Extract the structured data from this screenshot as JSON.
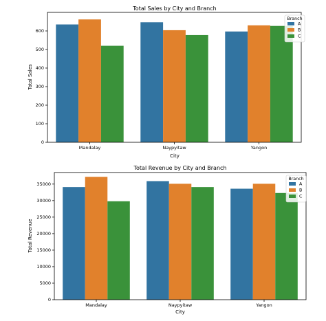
{
  "colors": {
    "A": "#3274a1",
    "B": "#e1812c",
    "C": "#3a923a"
  },
  "chart_data": [
    {
      "type": "bar",
      "title": "Total Sales by City and Branch",
      "xlabel": "City",
      "ylabel": "Total Sales",
      "categories": [
        "Mandalay",
        "Naypyitaw",
        "Yangon"
      ],
      "series": [
        {
          "name": "A",
          "values": [
            635,
            647,
            597
          ]
        },
        {
          "name": "B",
          "values": [
            662,
            604,
            630
          ]
        },
        {
          "name": "C",
          "values": [
            520,
            578,
            627
          ]
        }
      ],
      "ylim": [
        0,
        700
      ],
      "yticks": [
        "0",
        "100",
        "200",
        "300",
        "400",
        "500",
        "600"
      ],
      "legend_title": "Branch",
      "legend_position": "top-right",
      "grid": false
    },
    {
      "type": "bar",
      "title": "Total Revenue by City and Branch",
      "xlabel": "City",
      "ylabel": "Total Revenue",
      "categories": [
        "Mandalay",
        "Naypyitaw",
        "Yangon"
      ],
      "series": [
        {
          "name": "A",
          "values": [
            34100,
            35900,
            33600
          ]
        },
        {
          "name": "B",
          "values": [
            37200,
            35100,
            35100
          ]
        },
        {
          "name": "C",
          "values": [
            29800,
            34100,
            32300
          ]
        }
      ],
      "ylim": [
        0,
        38500
      ],
      "yticks": [
        "0",
        "5000",
        "10000",
        "15000",
        "20000",
        "25000",
        "30000",
        "35000"
      ],
      "legend_title": "Branch",
      "legend_position": "top-right",
      "grid": false
    }
  ]
}
